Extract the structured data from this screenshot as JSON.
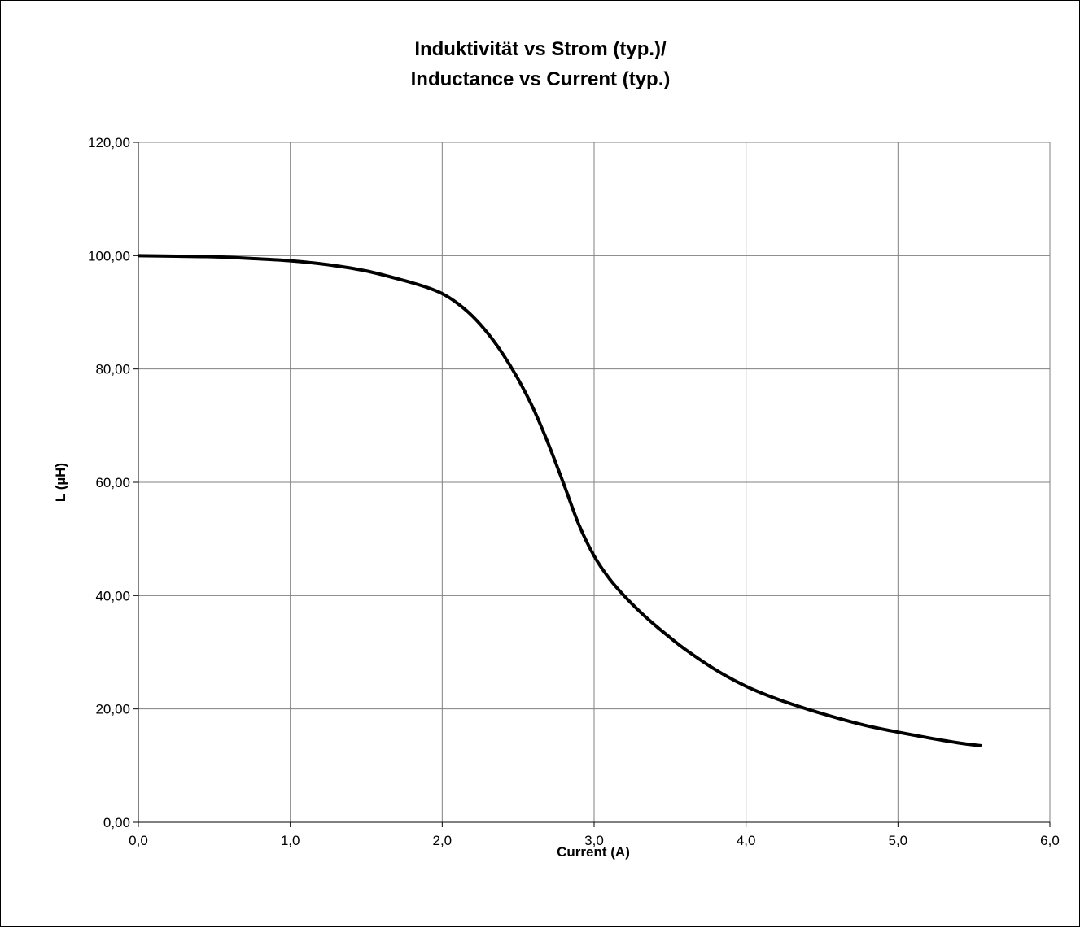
{
  "chart_data": {
    "type": "line",
    "title_lines": [
      "Induktivität vs Strom (typ.)/",
      "Inductance vs Current (typ.)"
    ],
    "xlabel": "Current (A)",
    "ylabel": "L (µH)",
    "xlim": [
      0,
      6
    ],
    "ylim": [
      0,
      120
    ],
    "x_ticks": [
      "0,0",
      "1,0",
      "2,0",
      "3,0",
      "4,0",
      "5,0",
      "6,0"
    ],
    "y_ticks": [
      "0,00",
      "20,00",
      "40,00",
      "60,00",
      "80,00",
      "100,00",
      "120,00"
    ],
    "grid": true,
    "legend": false,
    "series": [
      {
        "color": "#000000",
        "x": [
          0.0,
          0.25,
          0.5,
          0.75,
          1.0,
          1.25,
          1.5,
          1.75,
          1.9,
          2.0,
          2.1,
          2.2,
          2.3,
          2.4,
          2.5,
          2.6,
          2.7,
          2.8,
          2.9,
          3.0,
          3.1,
          3.2,
          3.3,
          3.4,
          3.5,
          3.6,
          3.8,
          4.0,
          4.2,
          4.4,
          4.6,
          4.8,
          5.0,
          5.2,
          5.4,
          5.55
        ],
        "y": [
          100.0,
          99.9,
          99.8,
          99.5,
          99.1,
          98.4,
          97.3,
          95.6,
          94.4,
          93.3,
          91.6,
          89.3,
          86.3,
          82.6,
          78.2,
          73.0,
          66.7,
          59.7,
          52.5,
          47.0,
          43.0,
          39.9,
          37.2,
          34.8,
          32.6,
          30.5,
          26.9,
          24.0,
          21.8,
          20.0,
          18.4,
          17.0,
          15.9,
          14.9,
          14.0,
          13.5
        ]
      }
    ]
  }
}
